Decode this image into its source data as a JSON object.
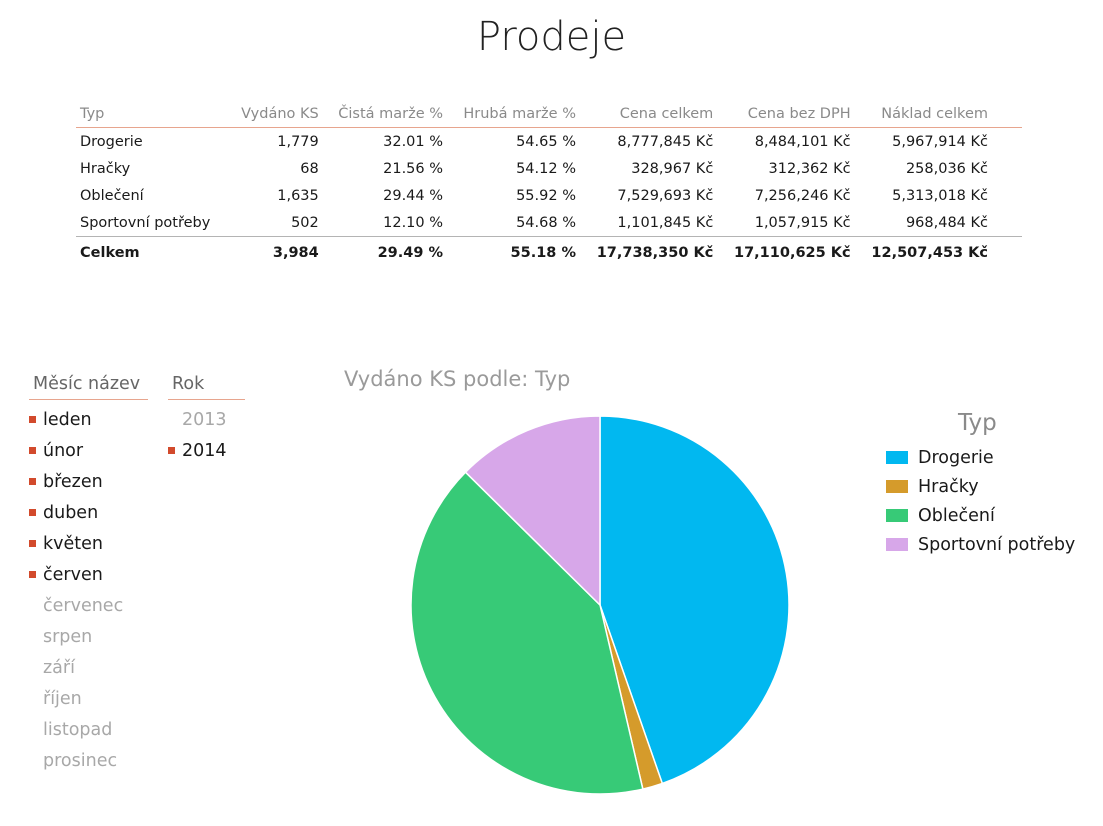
{
  "page": {
    "title": "Prodeje"
  },
  "table": {
    "headers": [
      "Typ",
      "Vydáno KS",
      "Čistá marže %",
      "Hrubá marže %",
      "Cena celkem",
      "Cena bez DPH",
      "Náklad celkem"
    ],
    "rows": [
      [
        "Drogerie",
        "1,779",
        "32.01 %",
        "54.65 %",
        "8,777,845 Kč",
        "8,484,101 Kč",
        "5,967,914 Kč"
      ],
      [
        "Hračky",
        "68",
        "21.56 %",
        "54.12 %",
        "328,967 Kč",
        "312,362 Kč",
        "258,036 Kč"
      ],
      [
        "Oblečení",
        "1,635",
        "29.44 %",
        "55.92 %",
        "7,529,693 Kč",
        "7,256,246 Kč",
        "5,313,018 Kč"
      ],
      [
        "Sportovní potřeby",
        "502",
        "12.10 %",
        "54.68 %",
        "1,101,845 Kč",
        "1,057,915 Kč",
        "968,484 Kč"
      ]
    ],
    "total": [
      "Celkem",
      "3,984",
      "29.49 %",
      "55.18 %",
      "17,738,350 Kč",
      "17,110,625 Kč",
      "12,507,453 Kč"
    ]
  },
  "slicers": {
    "month": {
      "title": "Měsíc název",
      "items": [
        {
          "label": "leden",
          "selected": true
        },
        {
          "label": "únor",
          "selected": true
        },
        {
          "label": "březen",
          "selected": true
        },
        {
          "label": "duben",
          "selected": true
        },
        {
          "label": "květen",
          "selected": true
        },
        {
          "label": "červen",
          "selected": true
        },
        {
          "label": "červenec",
          "selected": false
        },
        {
          "label": "srpen",
          "selected": false
        },
        {
          "label": "září",
          "selected": false
        },
        {
          "label": "říjen",
          "selected": false
        },
        {
          "label": "listopad",
          "selected": false
        },
        {
          "label": "prosinec",
          "selected": false
        }
      ]
    },
    "year": {
      "title": "Rok",
      "items": [
        {
          "label": "2013",
          "selected": false
        },
        {
          "label": "2014",
          "selected": true
        }
      ]
    }
  },
  "chart_data": {
    "type": "pie",
    "title": "Vydáno KS podle: Typ",
    "legend_title": "Typ",
    "legend_position": "right",
    "categories": [
      "Drogerie",
      "Hračky",
      "Oblečení",
      "Sportovní potřeby"
    ],
    "values": [
      1779,
      68,
      1635,
      502
    ],
    "colors": [
      "#01b8f0",
      "#d59b2b",
      "#37ca77",
      "#d7a7e9"
    ]
  },
  "colors": {
    "accent_line": "#e7a58e",
    "slicer_marker": "#d24a2c"
  }
}
